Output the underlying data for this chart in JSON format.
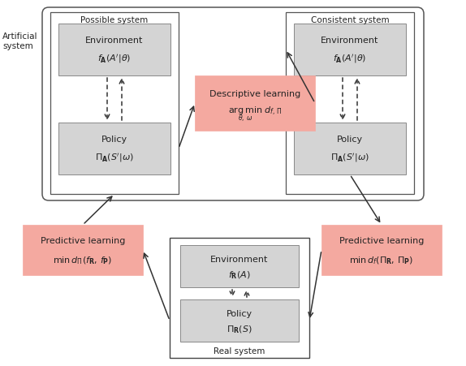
{
  "bg_color": "#ffffff",
  "salmon_color": "#f4a9a0",
  "light_gray": "#d4d4d4",
  "artificial_system_label": "Artificial\nsystem",
  "possible_system_label": "Possible system",
  "consistent_system_label": "Consistent system",
  "real_system_label": "Real system",
  "env_left_line1": "Environment",
  "env_left_line2": "$f_{\\mathbf{A}}(A^{\\prime}|\\theta)$",
  "policy_left_line1": "Policy",
  "policy_left_line2": "$\\Pi_{\\mathbf{A}}(S^{\\prime}|\\omega)$",
  "env_right_line1": "Environment",
  "env_right_line2": "$f_{\\mathbf{A}}(A^{\\prime}|\\theta)$",
  "policy_right_line1": "Policy",
  "policy_right_line2": "$\\Pi_{\\mathbf{A}}(S^{\\prime}|\\omega)$",
  "env_bottom_line1": "Environment",
  "env_bottom_line2": "$f_{\\mathbf{R}}(A)$",
  "policy_bottom_line1": "Policy",
  "policy_bottom_line2": "$\\Pi_{\\mathbf{R}}(S)$",
  "desc_learning_line1": "Descriptive learning",
  "desc_learning_line2": "$\\underset{\\theta,\\, \\omega}{\\arg\\min}\\; d_{f,\\,\\Pi}$",
  "pred_left_line1": "Predictive learning",
  "pred_left_line2": "$\\min\\, d_{\\Pi}(f_{\\mathbf{R}},\\, f_{\\mathbf{P}})$",
  "pred_right_line1": "Predictive learning",
  "pred_right_line2": "$\\min\\, d_{f}(\\Pi_{\\mathbf{R}},\\, \\Pi_{\\mathbf{P}})$"
}
